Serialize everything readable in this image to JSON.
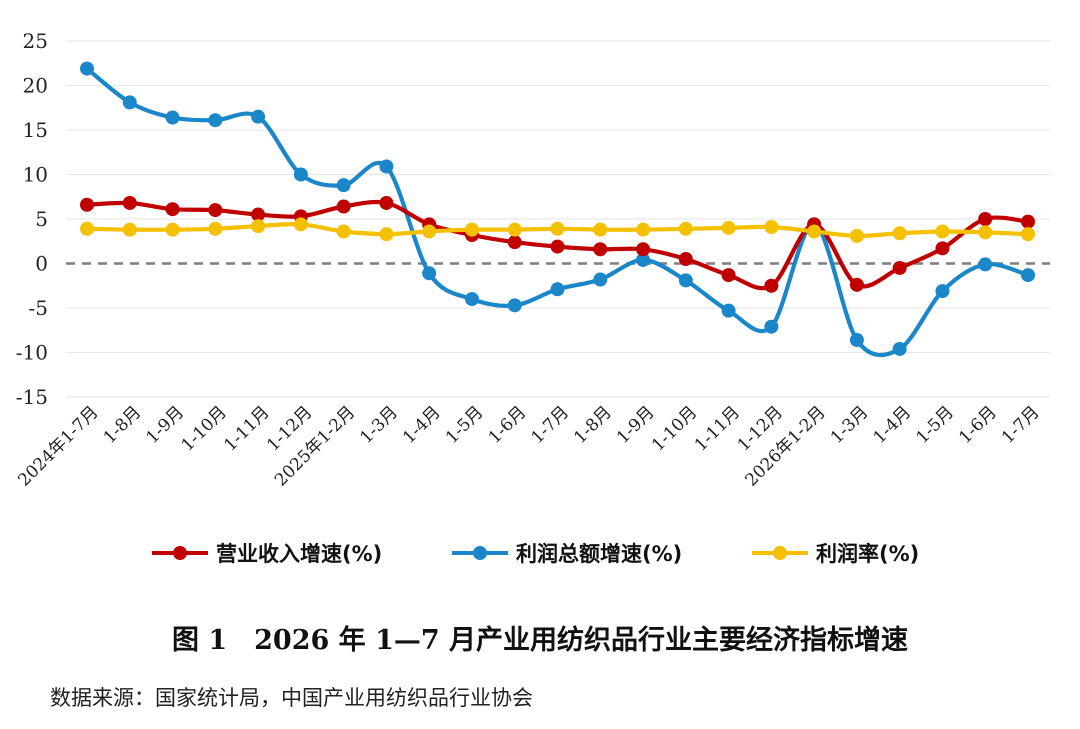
{
  "chart_data": {
    "type": "line",
    "categories": [
      "2024年1-7月",
      "1-8月",
      "1-9月",
      "1-10月",
      "1-11月",
      "1-12月",
      "2025年1-2月",
      "1-3月",
      "1-4月",
      "1-5月",
      "1-6月",
      "1-7月",
      "1-8月",
      "1-9月",
      "1-10月",
      "1-11月",
      "1-12月",
      "2026年1-2月",
      "1-3月",
      "1-4月",
      "1-5月",
      "1-6月",
      "1-7月"
    ],
    "yticks": [
      "25",
      "20",
      "15",
      "10",
      "5",
      "0",
      "-5",
      "-10",
      "-15"
    ],
    "ylim": [
      -15,
      25
    ],
    "grid": true,
    "zero_line": "dashed",
    "legend_position": "bottom",
    "series": [
      {
        "name": "营业收入增速(%)",
        "color": "#c00000",
        "values": [
          6.6,
          6.8,
          6.1,
          6.0,
          5.5,
          5.3,
          6.4,
          6.8,
          4.4,
          3.2,
          2.4,
          1.9,
          1.6,
          1.6,
          0.5,
          -1.3,
          -2.5,
          4.4,
          -2.4,
          -0.5,
          1.7,
          5.0,
          4.7
        ]
      },
      {
        "name": "利润总额增速(%)",
        "color": "#1b86c8",
        "values": [
          21.9,
          18.1,
          16.4,
          16.1,
          16.5,
          10.0,
          8.8,
          10.9,
          -1.1,
          -4.0,
          -4.7,
          -2.9,
          -1.8,
          0.4,
          -1.9,
          -5.3,
          -7.1,
          4.4,
          -8.6,
          -9.6,
          -3.1,
          -0.1,
          -1.3
        ]
      },
      {
        "name": "利润率(%)",
        "color": "#f5c000",
        "values": [
          3.9,
          3.8,
          3.8,
          3.9,
          4.2,
          4.4,
          3.6,
          3.3,
          3.6,
          3.8,
          3.8,
          3.9,
          3.8,
          3.8,
          3.9,
          4.0,
          4.1,
          3.6,
          3.1,
          3.4,
          3.6,
          3.5,
          3.3
        ]
      }
    ],
    "title": "图 1　2026 年 1—7 月产业用纺织品行业主要经济指标增速"
  },
  "source_note": "数据来源：国家统计局，中国产业用纺织品行业协会"
}
